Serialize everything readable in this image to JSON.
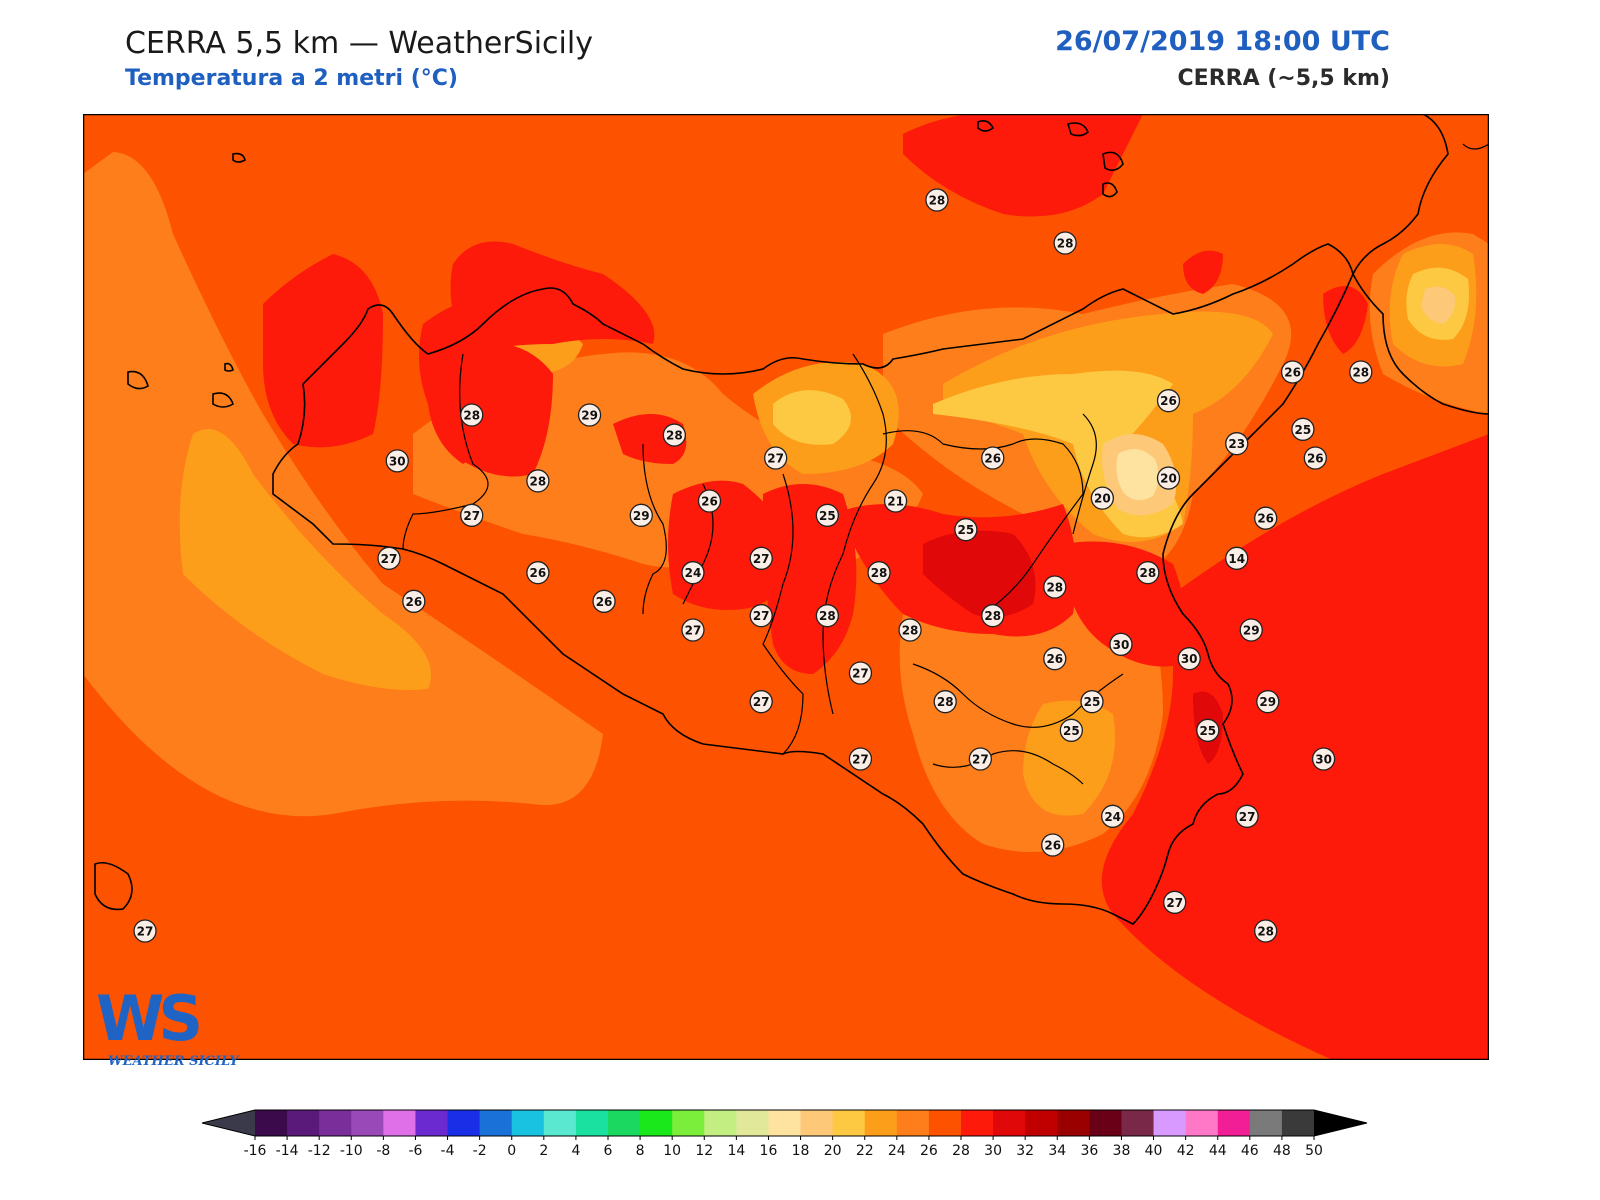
{
  "header": {
    "title": "CERRA 5,5 km — WeatherSicily",
    "subtitle": "Temperatura a 2 metri (°C)",
    "datetime": "26/07/2019 18:00 UTC",
    "model": "CERRA (~5,5 km)"
  },
  "logo": {
    "letters": "WS",
    "text": "WEATHER SICILY"
  },
  "colorbar": {
    "ticks": [
      "-16",
      "-14",
      "-12",
      "-10",
      "-8",
      "-6",
      "-4",
      "-2",
      "0",
      "2",
      "4",
      "6",
      "8",
      "10",
      "12",
      "14",
      "16",
      "18",
      "20",
      "22",
      "24",
      "26",
      "28",
      "30",
      "32",
      "34",
      "36",
      "38",
      "40",
      "42",
      "44",
      "46",
      "48",
      "50"
    ],
    "colors": [
      "#3a0a4a",
      "#5a1a7a",
      "#7a2e9a",
      "#9a4ab8",
      "#e070e8",
      "#6a2ad0",
      "#1a2ee8",
      "#1a72d8",
      "#1ac2e2",
      "#5ae8d0",
      "#1ae0a0",
      "#1ad860",
      "#1ae81a",
      "#7aee3a",
      "#c2ee82",
      "#e2e89a",
      "#fde2a0",
      "#fdc878",
      "#fdc842",
      "#fd9e1a",
      "#fd7e1a",
      "#fd5200",
      "#fd1a0a",
      "#e00808",
      "#c00000",
      "#9a0000",
      "#6a0018",
      "#7a2848",
      "#d89aff",
      "#ff78c8",
      "#f21e96",
      "#7a7a7a",
      "#3a3a3a"
    ],
    "under_color": "#3a3a4a",
    "over_color": "#000000"
  },
  "colors": {
    "base": "#fd5200",
    "band_24": "#fd7e1a",
    "band_22": "#fd9e1a",
    "band_20": "#fdc842",
    "band_18": "#fdc878",
    "band_16": "#fde2a0",
    "band_28": "#fd1a0a",
    "band_30": "#e00808"
  },
  "stations": [
    {
      "value": "28",
      "x": 14.33,
      "y": 38.9
    },
    {
      "value": "28",
      "x": 14.95,
      "y": 38.75
    },
    {
      "value": "28",
      "x": 12.08,
      "y": 38.15
    },
    {
      "value": "29",
      "x": 12.65,
      "y": 38.15
    },
    {
      "value": "28",
      "x": 13.06,
      "y": 38.08
    },
    {
      "value": "30",
      "x": 11.72,
      "y": 37.99
    },
    {
      "value": "28",
      "x": 12.4,
      "y": 37.92
    },
    {
      "value": "27",
      "x": 12.08,
      "y": 37.8
    },
    {
      "value": "29",
      "x": 12.9,
      "y": 37.8
    },
    {
      "value": "26",
      "x": 13.23,
      "y": 37.85
    },
    {
      "value": "27",
      "x": 13.55,
      "y": 38.0
    },
    {
      "value": "25",
      "x": 13.8,
      "y": 37.8
    },
    {
      "value": "21",
      "x": 14.13,
      "y": 37.85
    },
    {
      "value": "25",
      "x": 14.47,
      "y": 37.75
    },
    {
      "value": "26",
      "x": 14.6,
      "y": 38.0
    },
    {
      "value": "26",
      "x": 15.45,
      "y": 38.2
    },
    {
      "value": "23",
      "x": 15.78,
      "y": 38.05
    },
    {
      "value": "25",
      "x": 16.1,
      "y": 38.1
    },
    {
      "value": "26",
      "x": 16.05,
      "y": 38.3
    },
    {
      "value": "28",
      "x": 16.38,
      "y": 38.3
    },
    {
      "value": "26",
      "x": 16.16,
      "y": 38.0
    },
    {
      "value": "20",
      "x": 15.13,
      "y": 37.86
    },
    {
      "value": "20",
      "x": 15.45,
      "y": 37.93
    },
    {
      "value": "26",
      "x": 15.92,
      "y": 37.79
    },
    {
      "value": "14",
      "x": 15.78,
      "y": 37.65
    },
    {
      "value": "27",
      "x": 11.68,
      "y": 37.65
    },
    {
      "value": "26",
      "x": 12.4,
      "y": 37.6
    },
    {
      "value": "27",
      "x": 13.48,
      "y": 37.65
    },
    {
      "value": "24",
      "x": 13.15,
      "y": 37.6
    },
    {
      "value": "28",
      "x": 14.05,
      "y": 37.6
    },
    {
      "value": "28",
      "x": 15.35,
      "y": 37.6
    },
    {
      "value": "28",
      "x": 14.9,
      "y": 37.55
    },
    {
      "value": "26",
      "x": 11.8,
      "y": 37.5
    },
    {
      "value": "26",
      "x": 12.72,
      "y": 37.5
    },
    {
      "value": "27",
      "x": 13.48,
      "y": 37.45
    },
    {
      "value": "28",
      "x": 13.8,
      "y": 37.45
    },
    {
      "value": "28",
      "x": 14.2,
      "y": 37.4
    },
    {
      "value": "28",
      "x": 14.6,
      "y": 37.45
    },
    {
      "value": "27",
      "x": 13.15,
      "y": 37.4
    },
    {
      "value": "29",
      "x": 15.85,
      "y": 37.4
    },
    {
      "value": "30",
      "x": 15.22,
      "y": 37.35
    },
    {
      "value": "30",
      "x": 15.55,
      "y": 37.3
    },
    {
      "value": "26",
      "x": 14.9,
      "y": 37.3
    },
    {
      "value": "27",
      "x": 13.96,
      "y": 37.25
    },
    {
      "value": "28",
      "x": 14.37,
      "y": 37.15
    },
    {
      "value": "27",
      "x": 13.48,
      "y": 37.15
    },
    {
      "value": "25",
      "x": 15.08,
      "y": 37.15
    },
    {
      "value": "29",
      "x": 15.93,
      "y": 37.15
    },
    {
      "value": "25",
      "x": 14.98,
      "y": 37.05
    },
    {
      "value": "25",
      "x": 15.64,
      "y": 37.05
    },
    {
      "value": "30",
      "x": 16.2,
      "y": 36.95
    },
    {
      "value": "27",
      "x": 13.96,
      "y": 36.95
    },
    {
      "value": "27",
      "x": 14.54,
      "y": 36.95
    },
    {
      "value": "24",
      "x": 15.18,
      "y": 36.75
    },
    {
      "value": "27",
      "x": 15.83,
      "y": 36.75
    },
    {
      "value": "26",
      "x": 14.89,
      "y": 36.65
    },
    {
      "value": "27",
      "x": 10.5,
      "y": 36.35
    },
    {
      "value": "27",
      "x": 15.48,
      "y": 36.45
    },
    {
      "value": "28",
      "x": 15.92,
      "y": 36.35
    }
  ]
}
